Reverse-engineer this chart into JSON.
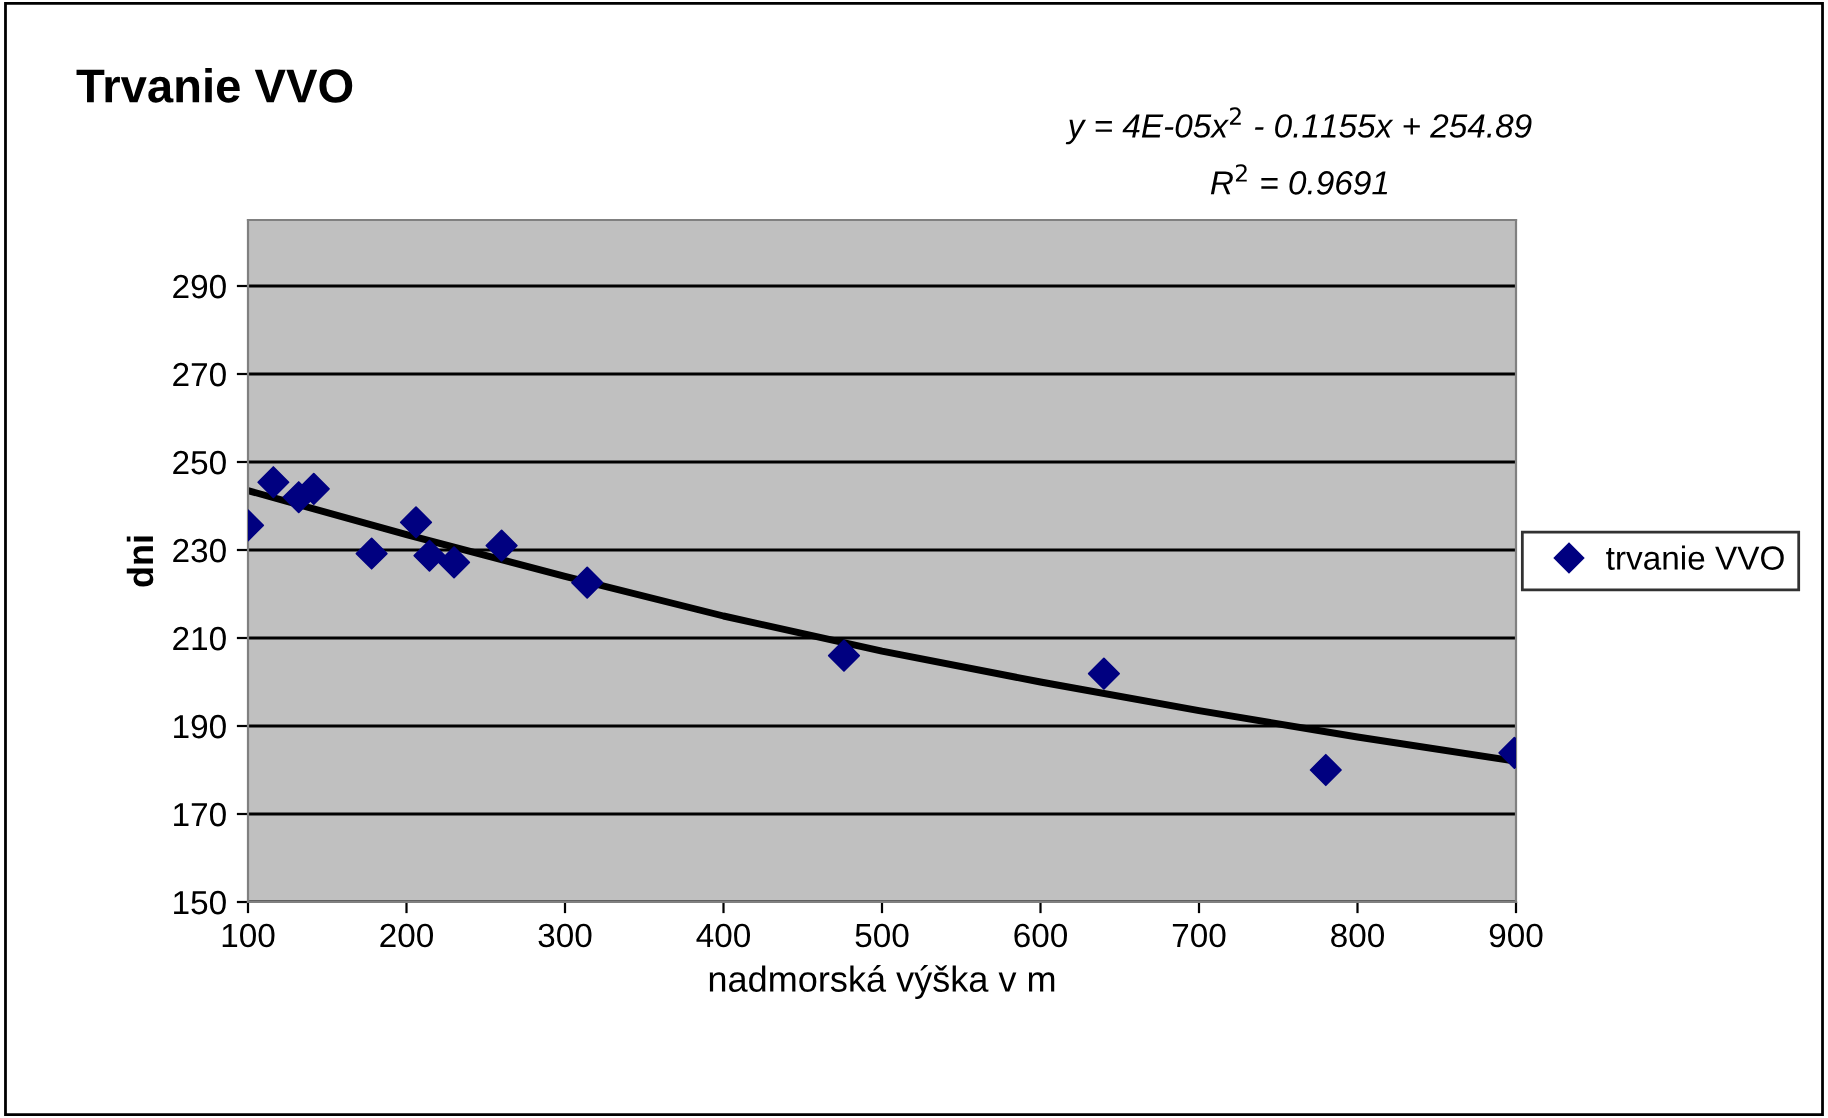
{
  "chart_data": {
    "type": "scatter",
    "title": "Trvanie VVO",
    "xlabel": "nadmorská výška v m",
    "ylabel": "dni",
    "annotations": [
      "y = 4E-05x$^{2}$ - 0.1155x + 254.89",
      "R$^{2}$ = 0.9691"
    ],
    "series": [
      {
        "name": "trvanie VVO",
        "color": "#000080",
        "marker": "diamond",
        "x": [
          100,
          116,
          132,
          141.5,
          178,
          206,
          214.5,
          230,
          260,
          314,
          476,
          640,
          780,
          899
        ],
        "values": [
          235.6,
          245.4,
          242,
          243.9,
          229.2,
          236.3,
          228.7,
          227.2,
          231,
          222.6,
          206,
          201.9,
          180,
          183.9
        ]
      },
      {
        "type": "line",
        "color": "#000000",
        "marker": "none",
        "line_style": "solid",
        "x": [
          100,
          200,
          300,
          400,
          500,
          600,
          700,
          800,
          900
        ],
        "values": [
          243.5,
          233.5,
          224,
          215,
          207,
          200,
          193.5,
          187.5,
          182
        ]
      }
    ],
    "xlim": [
      100,
      900
    ],
    "xticks": [
      100,
      200,
      300,
      400,
      500,
      600,
      700,
      800,
      900
    ],
    "ylim": [
      150,
      305
    ],
    "yticks": [
      150,
      170,
      190,
      210,
      230,
      250,
      270,
      290
    ],
    "grid": "y",
    "legend": "right"
  }
}
